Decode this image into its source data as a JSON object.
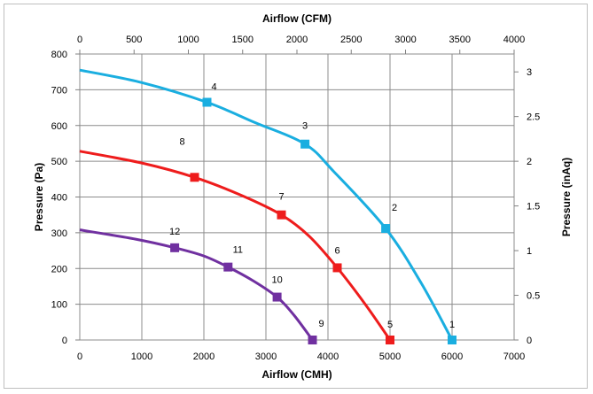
{
  "chart_data": {
    "type": "line",
    "xlabel_bottom": "Airflow (CMH)",
    "xlabel_top": "Airflow (CFM)",
    "ylabel_left": "Pressure (Pa)",
    "ylabel_right": "Pressure (inAq)",
    "xlim_bottom": [
      0,
      7000
    ],
    "xlim_top": [
      0,
      4000
    ],
    "ylim_left": [
      0,
      800
    ],
    "ylim_right": [
      0,
      3.2
    ],
    "x_ticks_bottom": [
      "0",
      "1000",
      "2000",
      "3000",
      "4000",
      "5000",
      "6000",
      "7000"
    ],
    "x_ticks_top": [
      "0",
      "500",
      "1000",
      "1500",
      "2000",
      "2500",
      "3000",
      "3500",
      "4000"
    ],
    "y_ticks_left": [
      "0",
      "100",
      "200",
      "300",
      "400",
      "500",
      "600",
      "700",
      "800"
    ],
    "y_ticks_right": [
      "0",
      "0.5",
      "1",
      "1.5",
      "2",
      "2.5",
      "3"
    ],
    "grid": true,
    "series": [
      {
        "color": "#1aaee0",
        "curve": [
          [
            0,
            755
          ],
          [
            1000,
            720
          ],
          [
            2050,
            665
          ],
          [
            2800,
            610
          ],
          [
            3630,
            548
          ],
          [
            4100,
            470
          ],
          [
            4930,
            312
          ],
          [
            5500,
            160
          ],
          [
            6000,
            0
          ]
        ],
        "points": [
          {
            "label": "1",
            "x": 6000,
            "y": 0
          },
          {
            "label": "2",
            "x": 4930,
            "y": 312
          },
          {
            "label": "3",
            "x": 3630,
            "y": 548
          },
          {
            "label": "4",
            "x": 2050,
            "y": 665
          }
        ]
      },
      {
        "color": "#ee1c1c",
        "curve": [
          [
            0,
            528
          ],
          [
            1000,
            495
          ],
          [
            1850,
            455
          ],
          [
            2600,
            405
          ],
          [
            3250,
            350
          ],
          [
            3700,
            290
          ],
          [
            4150,
            202
          ],
          [
            4600,
            100
          ],
          [
            5000,
            0
          ]
        ],
        "points": [
          {
            "label": "5",
            "x": 5000,
            "y": 0
          },
          {
            "label": "6",
            "x": 4150,
            "y": 202
          },
          {
            "label": "7",
            "x": 3250,
            "y": 350
          },
          {
            "label": "8",
            "x": 1850,
            "y": 455
          }
        ]
      },
      {
        "color": "#7030a0",
        "curve": [
          [
            0,
            308
          ],
          [
            900,
            282
          ],
          [
            1530,
            258
          ],
          [
            2000,
            235
          ],
          [
            2390,
            204
          ],
          [
            2800,
            165
          ],
          [
            3180,
            120
          ],
          [
            3450,
            70
          ],
          [
            3750,
            0
          ]
        ],
        "points": [
          {
            "label": "9",
            "x": 3750,
            "y": 0
          },
          {
            "label": "10",
            "x": 3180,
            "y": 120
          },
          {
            "label": "11",
            "x": 2390,
            "y": 204
          },
          {
            "label": "12",
            "x": 1530,
            "y": 258
          }
        ]
      }
    ]
  }
}
